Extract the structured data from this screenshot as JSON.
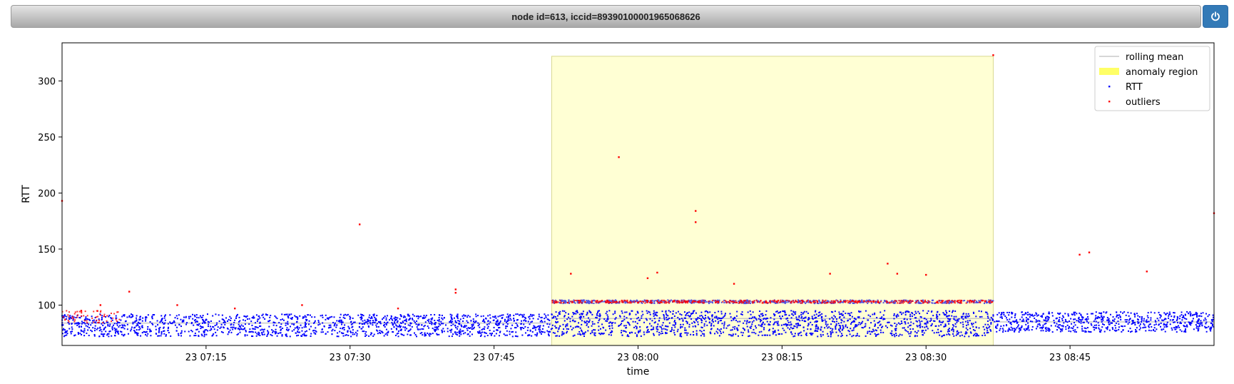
{
  "header": {
    "title": "node id=613, iccid=89390100001965068626",
    "power_icon": "power-icon"
  },
  "colors": {
    "rtt": "#0000ff",
    "outliers": "#ff0000",
    "rolling_mean": "#c8c8c8",
    "anomaly_region": "#ffff66",
    "accent_button": "#337ab7"
  },
  "chart_data": {
    "type": "scatter",
    "title": "",
    "xlabel": "time",
    "ylabel": "RTT",
    "x_start": "23 07:00",
    "x_end": "23 09:00",
    "xlim_minutes": [
      0,
      120
    ],
    "ylim": [
      64,
      334
    ],
    "x_ticks": [
      {
        "minute": 15,
        "label": "23 07:15"
      },
      {
        "minute": 30,
        "label": "23 07:30"
      },
      {
        "minute": 45,
        "label": "23 07:45"
      },
      {
        "minute": 60,
        "label": "23 08:00"
      },
      {
        "minute": 75,
        "label": "23 08:15"
      },
      {
        "minute": 90,
        "label": "23 08:30"
      },
      {
        "minute": 105,
        "label": "23 08:45"
      }
    ],
    "y_ticks": [
      100,
      150,
      200,
      250,
      300
    ],
    "grid": false,
    "legend_position": "top-right",
    "legend": [
      {
        "key": "rolling_mean",
        "label": "rolling mean"
      },
      {
        "key": "anomaly_region",
        "label": "anomaly region"
      },
      {
        "key": "rtt",
        "label": "RTT"
      },
      {
        "key": "outliers",
        "label": "outliers"
      }
    ],
    "anomaly_region": {
      "start": "23 07:51",
      "end": "23 08:37",
      "ymin": 64,
      "ymax": 322
    },
    "rtt_bands": [
      {
        "start": "23 07:00",
        "end": "23 07:51",
        "min": 72,
        "max": 92,
        "mean": 84
      },
      {
        "start": "23 07:51",
        "end": "23 08:37",
        "min": 72,
        "max": 95,
        "mean": 88,
        "upper_level": 103
      },
      {
        "start": "23 08:37",
        "end": "23 09:00",
        "min": 76,
        "max": 94,
        "mean": 85
      }
    ],
    "outlier_bands": [
      {
        "start": "23 07:00",
        "end": "23 07:06",
        "min": 84,
        "max": 95
      },
      {
        "start": "23 07:51",
        "end": "23 08:37",
        "level": 103
      }
    ],
    "outlier_points": [
      {
        "x": "23 07:00",
        "y": 193
      },
      {
        "x": "23 07:02",
        "y": 95
      },
      {
        "x": "23 07:04",
        "y": 100
      },
      {
        "x": "23 07:07",
        "y": 112
      },
      {
        "x": "23 07:12",
        "y": 100
      },
      {
        "x": "23 07:18",
        "y": 97
      },
      {
        "x": "23 07:25",
        "y": 100
      },
      {
        "x": "23 07:31",
        "y": 172
      },
      {
        "x": "23 07:35",
        "y": 97
      },
      {
        "x": "23 07:41",
        "y": 114
      },
      {
        "x": "23 07:41",
        "y": 111
      },
      {
        "x": "23 07:53",
        "y": 128
      },
      {
        "x": "23 07:58",
        "y": 232
      },
      {
        "x": "23 08:01",
        "y": 124
      },
      {
        "x": "23 08:02",
        "y": 129
      },
      {
        "x": "23 08:06",
        "y": 184
      },
      {
        "x": "23 08:06",
        "y": 174
      },
      {
        "x": "23 08:10",
        "y": 119
      },
      {
        "x": "23 08:20",
        "y": 128
      },
      {
        "x": "23 08:26",
        "y": 137
      },
      {
        "x": "23 08:27",
        "y": 128
      },
      {
        "x": "23 08:30",
        "y": 127
      },
      {
        "x": "23 08:37",
        "y": 323
      },
      {
        "x": "23 08:46",
        "y": 145
      },
      {
        "x": "23 08:47",
        "y": 147
      },
      {
        "x": "23 08:53",
        "y": 130
      },
      {
        "x": "23 09:00",
        "y": 182
      }
    ]
  }
}
